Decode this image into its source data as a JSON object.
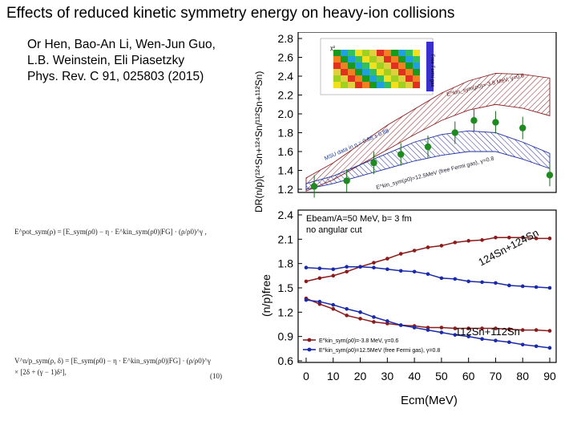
{
  "title": "Effects of reduced kinetic symmetry energy on heavy-ion collisions",
  "authors": {
    "line1": "Or Hen, Bao-An Li, Wen-Jun Guo,",
    "line2": "L.B. Weinstein, Eli Piasetzky",
    "line3": "Phys. Rev. C 91, 025803 (2015)"
  },
  "formulas": {
    "eq1": "E^pot_sym(ρ) = [E_sym(ρ0) − η · E^kin_sym(ρ0)|FG] · (ρ/ρ0)^γ ,",
    "eq2_line1": "V^n/p_sym(ρ, δ) = [E_sym(ρ0) − η · E^kin_sym(ρ0)|FG] · (ρ/ρ0)^γ",
    "eq2_line2": "× [2δ + (γ − 1)δ²],",
    "eq2_number": "(10)"
  },
  "chart_data": [
    {
      "type": "line",
      "panel": "top",
      "ylabel": "DR(n/p)(¹²⁴Sn+¹²⁴Sn/¹¹²Sn+¹¹²Sn)",
      "ylim": [
        1.1,
        2.9
      ],
      "yticks": [
        "1.2",
        "1.4",
        "1.6",
        "1.8",
        "2.0",
        "2.2",
        "2.4",
        "2.6",
        "2.8"
      ],
      "xlim": [
        0,
        90
      ],
      "series": [
        {
          "name": "E^kin_sym(ρ0)=-3.8 MeV, γ=0.6",
          "x": [
            0,
            10,
            20,
            30,
            40,
            50,
            60,
            70,
            80,
            90
          ],
          "low": [
            1.18,
            1.3,
            1.46,
            1.62,
            1.78,
            1.93,
            2.04,
            2.1,
            2.06,
            1.98
          ],
          "high": [
            1.32,
            1.48,
            1.68,
            1.88,
            2.05,
            2.22,
            2.35,
            2.43,
            2.42,
            2.38
          ]
        },
        {
          "name": "E^kin_sym(ρ0)=12.5MeV (free Fermi gas), γ=0.8",
          "x": [
            0,
            10,
            20,
            30,
            40,
            50,
            60,
            70,
            80,
            90
          ],
          "low": [
            1.2,
            1.26,
            1.34,
            1.42,
            1.5,
            1.56,
            1.6,
            1.6,
            1.52,
            1.42
          ],
          "high": [
            1.26,
            1.34,
            1.46,
            1.58,
            1.7,
            1.78,
            1.82,
            1.8,
            1.7,
            1.58
          ]
        },
        {
          "name": "MSU data",
          "x": [
            3,
            15,
            25,
            35,
            45,
            55,
            62,
            70,
            80,
            90
          ],
          "y": [
            1.23,
            1.29,
            1.48,
            1.57,
            1.65,
            1.8,
            1.93,
            1.91,
            1.85,
            1.35
          ]
        }
      ],
      "annotations": {
        "msu": "MSU data in η = 0.88 ± 0.88",
        "upper": "E^kin_sym(ρ0)=-3.8 MeV, γ=0.6",
        "lower": "E^kin_sym(ρ0)=12.5MeV (free Fermi gas), γ=0.8",
        "inset_free": "Free Fermi gas",
        "inset_chi": "χ²"
      }
    },
    {
      "type": "line",
      "panel": "bottom",
      "ylabel": "(n/p)free",
      "xlabel": "Ecm(MeV)",
      "xlim": [
        0,
        90
      ],
      "xticks": [
        "0",
        "10",
        "20",
        "30",
        "40",
        "50",
        "60",
        "70",
        "80",
        "90"
      ],
      "ylim": [
        0.6,
        2.4
      ],
      "yticks": [
        "0.6",
        "0.9",
        "1.2",
        "1.5",
        "1.8",
        "2.1",
        "2.4"
      ],
      "info_line1": "Ebeam/A=50 MeV, b= 3 fm",
      "info_line2": "no angular cut",
      "label_124": "124Sn+124Sn",
      "label_112": "112Sn+112Sn",
      "legend": [
        "E^kin_sym(ρ0)=-3.8 MeV, γ=0.6",
        "E^kin_sym(ρ0)=12.5MeV (free Fermi gas), γ=0.8"
      ],
      "series": [
        {
          "name": "124 reduced",
          "color": "#8b1a1a",
          "x": [
            0,
            5,
            10,
            15,
            20,
            25,
            30,
            35,
            40,
            45,
            50,
            55,
            60,
            65,
            70,
            75,
            80,
            85,
            90
          ],
          "y": [
            1.58,
            1.62,
            1.65,
            1.7,
            1.76,
            1.81,
            1.86,
            1.92,
            1.96,
            2.0,
            2.02,
            2.06,
            2.08,
            2.09,
            2.12,
            2.12,
            2.12,
            2.11,
            2.11
          ]
        },
        {
          "name": "124 free",
          "color": "#1a2aa8",
          "x": [
            0,
            5,
            10,
            15,
            20,
            25,
            30,
            35,
            40,
            45,
            50,
            55,
            60,
            65,
            70,
            75,
            80,
            85,
            90
          ],
          "y": [
            1.75,
            1.74,
            1.73,
            1.76,
            1.76,
            1.75,
            1.73,
            1.71,
            1.7,
            1.67,
            1.62,
            1.61,
            1.58,
            1.57,
            1.56,
            1.53,
            1.52,
            1.51,
            1.5
          ]
        },
        {
          "name": "112 reduced",
          "color": "#8b1a1a",
          "x": [
            0,
            5,
            10,
            15,
            20,
            25,
            30,
            35,
            40,
            45,
            50,
            55,
            60,
            65,
            70,
            75,
            80,
            85,
            90
          ],
          "y": [
            1.37,
            1.3,
            1.24,
            1.16,
            1.12,
            1.08,
            1.06,
            1.04,
            1.03,
            1.01,
            1.01,
            1.0,
            1.0,
            1.0,
            1.0,
            0.99,
            0.98,
            0.98,
            0.97
          ]
        },
        {
          "name": "112 free",
          "color": "#1a2aa8",
          "x": [
            0,
            5,
            10,
            15,
            20,
            25,
            30,
            35,
            40,
            45,
            50,
            55,
            60,
            65,
            70,
            75,
            80,
            85,
            90
          ],
          "y": [
            1.35,
            1.33,
            1.29,
            1.24,
            1.2,
            1.14,
            1.09,
            1.04,
            1.01,
            0.98,
            0.95,
            0.92,
            0.9,
            0.87,
            0.85,
            0.83,
            0.8,
            0.78,
            0.76
          ]
        }
      ]
    }
  ]
}
